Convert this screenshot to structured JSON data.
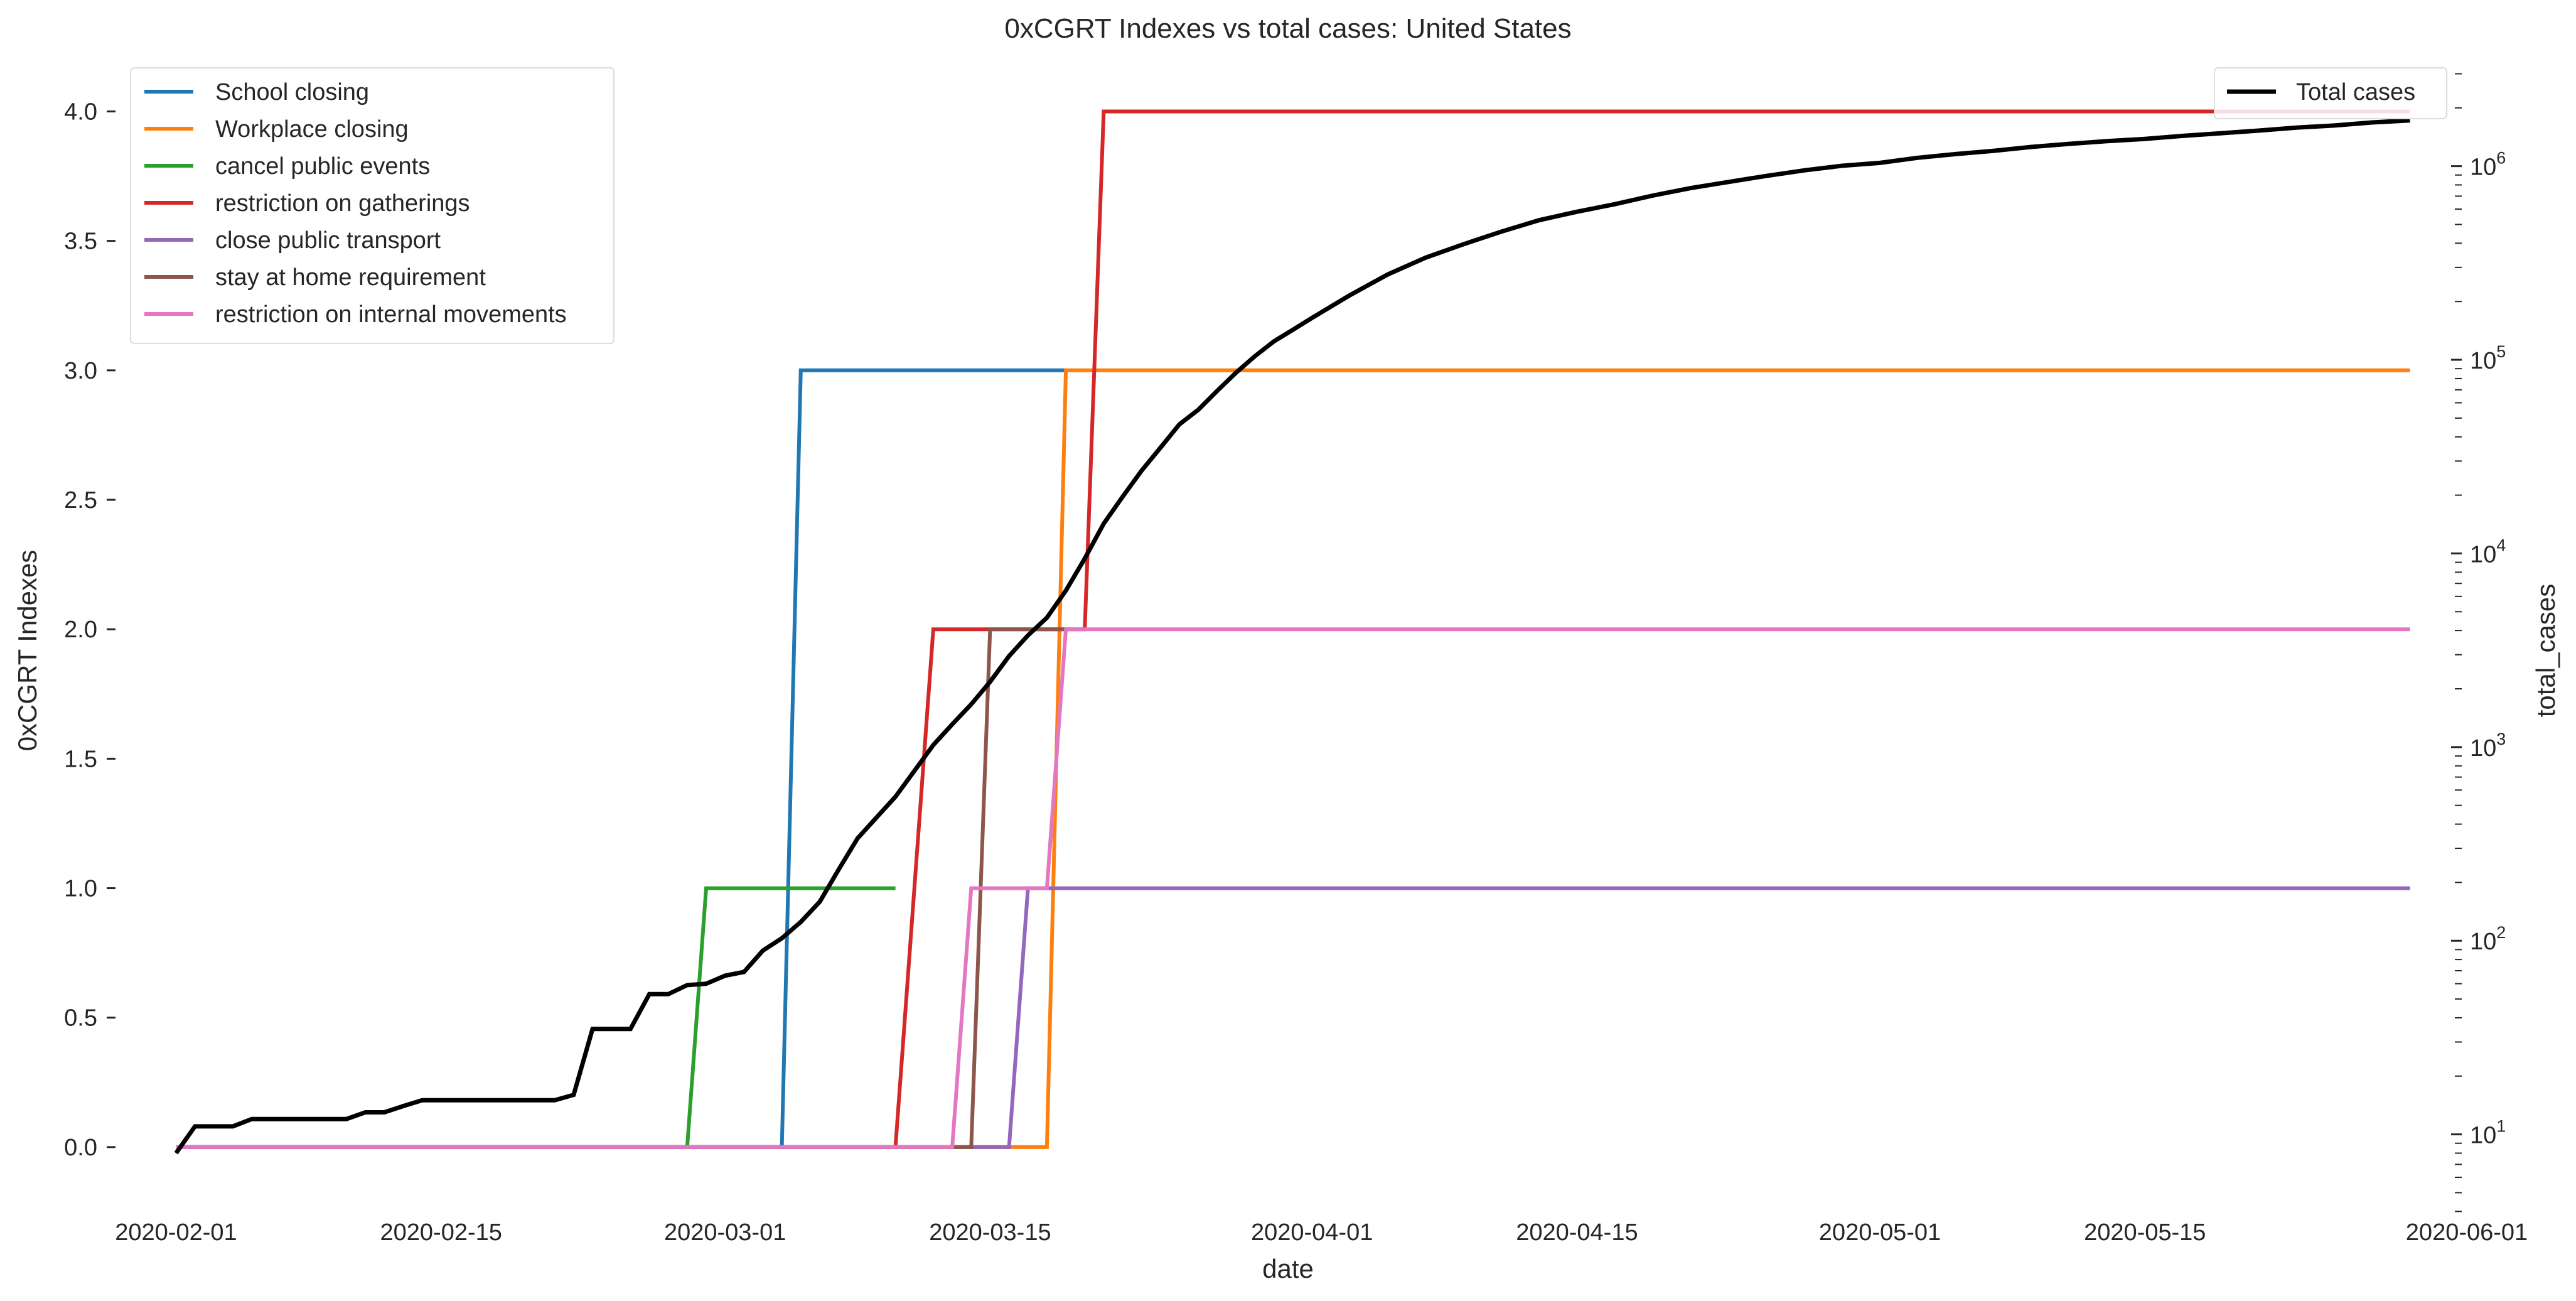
{
  "chart_data": {
    "type": "line",
    "title": "0xCGRT Indexes vs total cases:  United States",
    "xlabel": "date",
    "ylabel_left": "0xCGRT Indexes",
    "ylabel_right": "total_cases",
    "x_range": [
      "2020-01-29",
      "2020-06-01"
    ],
    "ylim_left": [
      -0.25,
      4.2
    ],
    "ylim_right_log10": [
      0.6,
      6.55
    ],
    "x_tick_labels": [
      "2020-02-01",
      "2020-02-15",
      "2020-03-01",
      "2020-03-15",
      "2020-04-01",
      "2020-04-15",
      "2020-05-01",
      "2020-05-15",
      "2020-06-01"
    ],
    "y_left_ticks": [
      "0.0",
      "0.5",
      "1.0",
      "1.5",
      "2.0",
      "2.5",
      "3.0",
      "3.5",
      "4.0"
    ],
    "y_right_ticks": [
      {
        "base": "10",
        "exp": "1",
        "value": 10
      },
      {
        "base": "10",
        "exp": "2",
        "value": 100
      },
      {
        "base": "10",
        "exp": "3",
        "value": 1000
      },
      {
        "base": "10",
        "exp": "4",
        "value": 10000
      },
      {
        "base": "10",
        "exp": "5",
        "value": 100000
      },
      {
        "base": "10",
        "exp": "6",
        "value": 1000000
      }
    ],
    "y_right_scale": "log",
    "grid": false,
    "legend_left_position": "upper-left",
    "legend_right_position": "upper-right",
    "series": [
      {
        "name": "School closing",
        "color": "#1f77b4",
        "axis": "left",
        "points": [
          [
            "2020-02-01",
            0
          ],
          [
            "2020-03-04",
            0
          ],
          [
            "2020-03-05",
            3
          ],
          [
            "2020-03-19",
            3
          ]
        ]
      },
      {
        "name": "Workplace closing",
        "color": "#ff7f0e",
        "axis": "left",
        "points": [
          [
            "2020-02-01",
            0
          ],
          [
            "2020-03-18",
            0
          ],
          [
            "2020-03-19",
            3
          ],
          [
            "2020-05-29",
            3
          ]
        ]
      },
      {
        "name": "cancel public events",
        "color": "#2ca02c",
        "axis": "left",
        "points": [
          [
            "2020-02-01",
            0
          ],
          [
            "2020-02-28",
            0
          ],
          [
            "2020-02-29",
            1
          ],
          [
            "2020-03-10",
            1
          ]
        ]
      },
      {
        "name": "restriction on gatherings",
        "color": "#d62728",
        "axis": "left",
        "points": [
          [
            "2020-02-01",
            0
          ],
          [
            "2020-03-10",
            0
          ],
          [
            "2020-03-12",
            2
          ],
          [
            "2020-03-20",
            2
          ],
          [
            "2020-03-21",
            4
          ],
          [
            "2020-05-29",
            4
          ]
        ]
      },
      {
        "name": "close public transport",
        "color": "#9467bd",
        "axis": "left",
        "points": [
          [
            "2020-02-01",
            0
          ],
          [
            "2020-03-16",
            0
          ],
          [
            "2020-03-17",
            1
          ],
          [
            "2020-05-29",
            1
          ]
        ]
      },
      {
        "name": "stay at home requirement",
        "color": "#8c564b",
        "axis": "left",
        "points": [
          [
            "2020-02-01",
            0
          ],
          [
            "2020-03-14",
            0
          ],
          [
            "2020-03-15",
            2
          ],
          [
            "2020-03-19",
            2
          ]
        ]
      },
      {
        "name": "restriction on internal movements",
        "color": "#e377c2",
        "axis": "left",
        "points": [
          [
            "2020-02-01",
            0
          ],
          [
            "2020-03-13",
            0
          ],
          [
            "2020-03-14",
            1
          ],
          [
            "2020-03-18",
            1
          ],
          [
            "2020-03-19",
            2
          ],
          [
            "2020-05-29",
            2
          ]
        ]
      },
      {
        "name": "Total cases",
        "color": "#000000",
        "axis": "right",
        "points": [
          [
            "2020-02-01",
            8
          ],
          [
            "2020-02-02",
            11
          ],
          [
            "2020-02-03",
            11
          ],
          [
            "2020-02-04",
            11
          ],
          [
            "2020-02-05",
            12
          ],
          [
            "2020-02-06",
            12
          ],
          [
            "2020-02-07",
            12
          ],
          [
            "2020-02-08",
            12
          ],
          [
            "2020-02-09",
            12
          ],
          [
            "2020-02-10",
            12
          ],
          [
            "2020-02-11",
            13
          ],
          [
            "2020-02-12",
            13
          ],
          [
            "2020-02-13",
            14
          ],
          [
            "2020-02-14",
            15
          ],
          [
            "2020-02-15",
            15
          ],
          [
            "2020-02-16",
            15
          ],
          [
            "2020-02-17",
            15
          ],
          [
            "2020-02-18",
            15
          ],
          [
            "2020-02-19",
            15
          ],
          [
            "2020-02-20",
            15
          ],
          [
            "2020-02-21",
            15
          ],
          [
            "2020-02-22",
            16
          ],
          [
            "2020-02-23",
            35
          ],
          [
            "2020-02-24",
            35
          ],
          [
            "2020-02-25",
            35
          ],
          [
            "2020-02-26",
            53
          ],
          [
            "2020-02-27",
            53
          ],
          [
            "2020-02-28",
            59
          ],
          [
            "2020-02-29",
            60
          ],
          [
            "2020-03-01",
            66
          ],
          [
            "2020-03-02",
            69
          ],
          [
            "2020-03-03",
            89
          ],
          [
            "2020-03-04",
            103
          ],
          [
            "2020-03-05",
            125
          ],
          [
            "2020-03-06",
            159
          ],
          [
            "2020-03-07",
            233
          ],
          [
            "2020-03-08",
            338
          ],
          [
            "2020-03-09",
            433
          ],
          [
            "2020-03-10",
            554
          ],
          [
            "2020-03-11",
            754
          ],
          [
            "2020-03-12",
            1025
          ],
          [
            "2020-03-13",
            1312
          ],
          [
            "2020-03-14",
            1663
          ],
          [
            "2020-03-15",
            2174
          ],
          [
            "2020-03-16",
            2951
          ],
          [
            "2020-03-17",
            3774
          ],
          [
            "2020-03-18",
            4661
          ],
          [
            "2020-03-19",
            6427
          ],
          [
            "2020-03-20",
            9415
          ],
          [
            "2020-03-21",
            14250
          ],
          [
            "2020-03-22",
            19624
          ],
          [
            "2020-03-23",
            26747
          ],
          [
            "2020-03-24",
            35206
          ],
          [
            "2020-03-25",
            46442
          ],
          [
            "2020-03-26",
            55231
          ],
          [
            "2020-03-27",
            69194
          ],
          [
            "2020-03-28",
            85991
          ],
          [
            "2020-03-29",
            104686
          ],
          [
            "2020-03-30",
            124665
          ],
          [
            "2020-03-31",
            143025
          ],
          [
            "2020-04-01",
            164620
          ],
          [
            "2020-04-03",
            215417
          ],
          [
            "2020-04-05",
            275586
          ],
          [
            "2020-04-07",
            336673
          ],
          [
            "2020-04-09",
            395011
          ],
          [
            "2020-04-11",
            459165
          ],
          [
            "2020-04-13",
            525704
          ],
          [
            "2020-04-15",
            581679
          ],
          [
            "2020-04-17",
            636350
          ],
          [
            "2020-04-19",
            704830
          ],
          [
            "2020-04-21",
            770076
          ],
          [
            "2020-04-23",
            828441
          ],
          [
            "2020-04-25",
            890524
          ],
          [
            "2020-04-27",
            951066
          ],
          [
            "2020-04-29",
            1004908
          ],
          [
            "2020-05-01",
            1039909
          ],
          [
            "2020-05-03",
            1104234
          ],
          [
            "2020-05-05",
            1154117
          ],
          [
            "2020-05-07",
            1199108
          ],
          [
            "2020-05-09",
            1257023
          ],
          [
            "2020-05-11",
            1303680
          ],
          [
            "2020-05-13",
            1346723
          ],
          [
            "2020-05-15",
            1383118
          ],
          [
            "2020-05-17",
            1433758
          ],
          [
            "2020-05-19",
            1479041
          ],
          [
            "2020-05-21",
            1526627
          ],
          [
            "2020-05-23",
            1581823
          ],
          [
            "2020-05-25",
            1620902
          ],
          [
            "2020-05-27",
            1682223
          ],
          [
            "2020-05-29",
            1721750
          ]
        ]
      }
    ]
  }
}
